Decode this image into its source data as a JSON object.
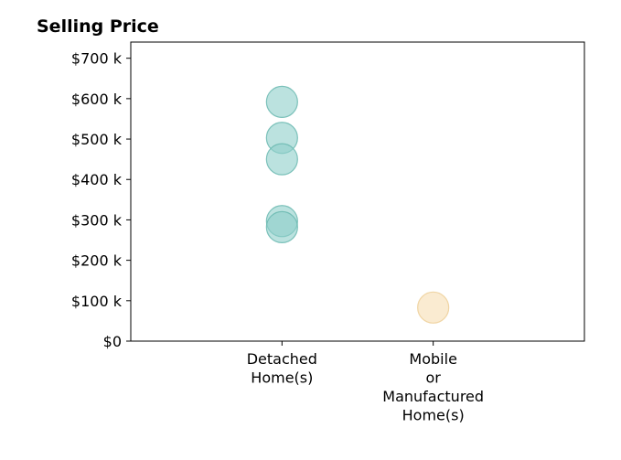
{
  "chart_data": {
    "type": "scatter",
    "title": "Selling Price",
    "xlabel": "",
    "ylabel": "",
    "categories": [
      "Detached Home(s)",
      "Mobile or Manufactured Home(s)"
    ],
    "category_tick_lines": [
      [
        "Detached",
        "Home(s)"
      ],
      [
        "Mobile",
        "or",
        "Manufactured",
        "Home(s)"
      ]
    ],
    "ylim": [
      0,
      740000
    ],
    "y_ticks": [
      0,
      100000,
      200000,
      300000,
      400000,
      500000,
      600000,
      700000
    ],
    "y_tick_labels": [
      "$0",
      "$100 k",
      "$200 k",
      "$300 k",
      "$400 k",
      "$500 k",
      "$600 k",
      "$700 k"
    ],
    "grid": false,
    "points": [
      {
        "category": "Detached Home(s)",
        "y": 592000
      },
      {
        "category": "Detached Home(s)",
        "y": 503000
      },
      {
        "category": "Detached Home(s)",
        "y": 450000
      },
      {
        "category": "Detached Home(s)",
        "y": 297000
      },
      {
        "category": "Detached Home(s)",
        "y": 282000
      },
      {
        "category": "Mobile or Manufactured Home(s)",
        "y": 83000
      }
    ],
    "colors": {
      "Detached Home(s)": "#8ecfc9",
      "Mobile or Manufactured Home(s)": "#f6deb2"
    },
    "marker_edge_colors": {
      "Detached Home(s)": "#6ab8b0",
      "Mobile or Manufactured Home(s)": "#edcf98"
    },
    "marker_opacity": 0.6
  }
}
